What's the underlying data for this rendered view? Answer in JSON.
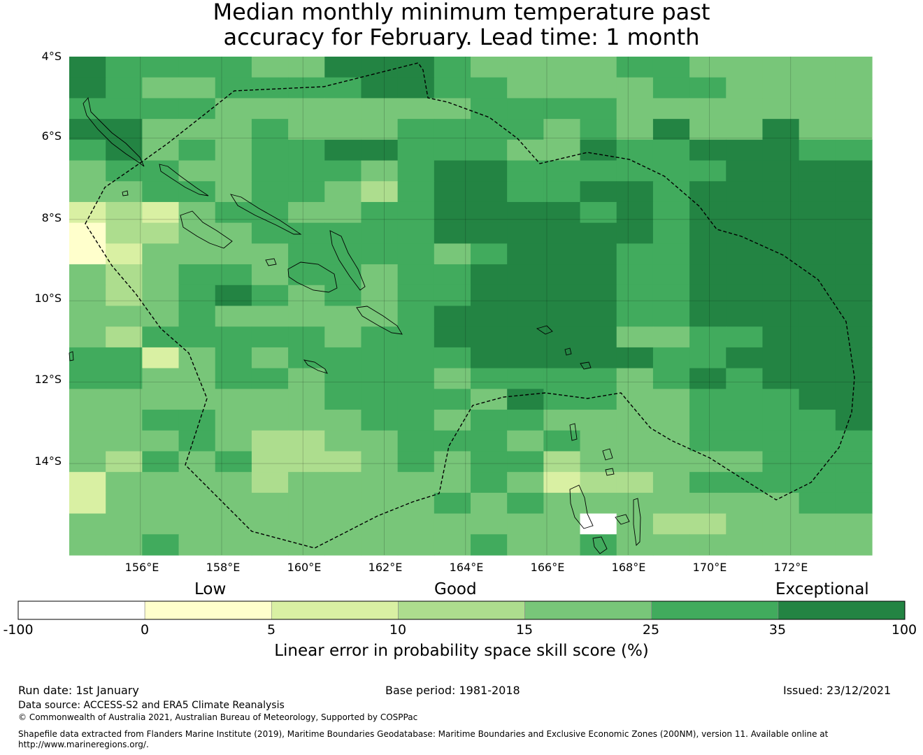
{
  "title": {
    "line1": "Median monthly minimum temperature past",
    "line2": "accuracy for February. Lead time: 1 month"
  },
  "map": {
    "lat_labels": [
      "4°S",
      "6°S",
      "8°S",
      "10°S",
      "12°S",
      "14°S"
    ],
    "lon_labels": [
      "156°E",
      "158°E",
      "160°E",
      "162°E",
      "164°E",
      "166°E",
      "168°E",
      "170°E",
      "172°E"
    ],
    "lon_range": [
      154.25,
      174.0
    ],
    "lat_range": [
      -16.25,
      -4.0
    ],
    "cell_size_deg": 0.8333,
    "grid_categories": [
      "6555544666544445544444",
      "6544555566554444554444",
      "5555444444455554444444",
      "6644454445555454644644",
      "5645455665554465566655",
      "4554455545665555556666",
      "4455455435665566566666",
      "2324554455666656566666",
      "1334455555666666566666",
      "1244445555456665566666",
      "4345545545566665566666",
      "4345654545566665566666",
      "4445444445666665566666",
      "4355555455666664455666",
      "5524545555566666556666",
      "5544554555455554565666",
      "4444444555546554455566",
      "4455444455455444455556",
      "4445433445554544455555",
      "4354533345455344444555",
      "2444434444454233455555",
      "2444444444545444444455",
      "4444444444444404334444",
      "4454444444454454444444"
    ],
    "land_note": "Solomon Islands and Vanuatu coastlines with dashed EEZ boundary"
  },
  "colorbar": {
    "category_labels": [
      "Low",
      "Good",
      "Exceptional"
    ],
    "ticks": [
      "-100",
      "0",
      "5",
      "10",
      "15",
      "25",
      "35",
      "100"
    ],
    "label": "Linear error in probability space skill score (%)",
    "colors": [
      "#ffffff",
      "#ffffcc",
      "#d9f0a3",
      "#addd8e",
      "#78c679",
      "#41ab5d",
      "#238443"
    ]
  },
  "footer": {
    "run_date": "Run date: 1st January",
    "base_period": "Base period: 1981-2018",
    "issued": "Issued: 23/12/2021",
    "data_source": "Data source: ACCESS-S2 and ERA5 Climate Reanalysis",
    "copyright": "© Commonwealth of Australia 2021, Australian Bureau of Meteorology, Supported by COSPPac",
    "shapefile_line1": "Shapefile data extracted from Flanders Marine Institute (2019), Maritime Boundaries Geodatabase: Maritime Boundaries and Exclusive Economic Zones (200NM), version 11. Available online at",
    "shapefile_line2": "http://www.marineregions.org/."
  }
}
